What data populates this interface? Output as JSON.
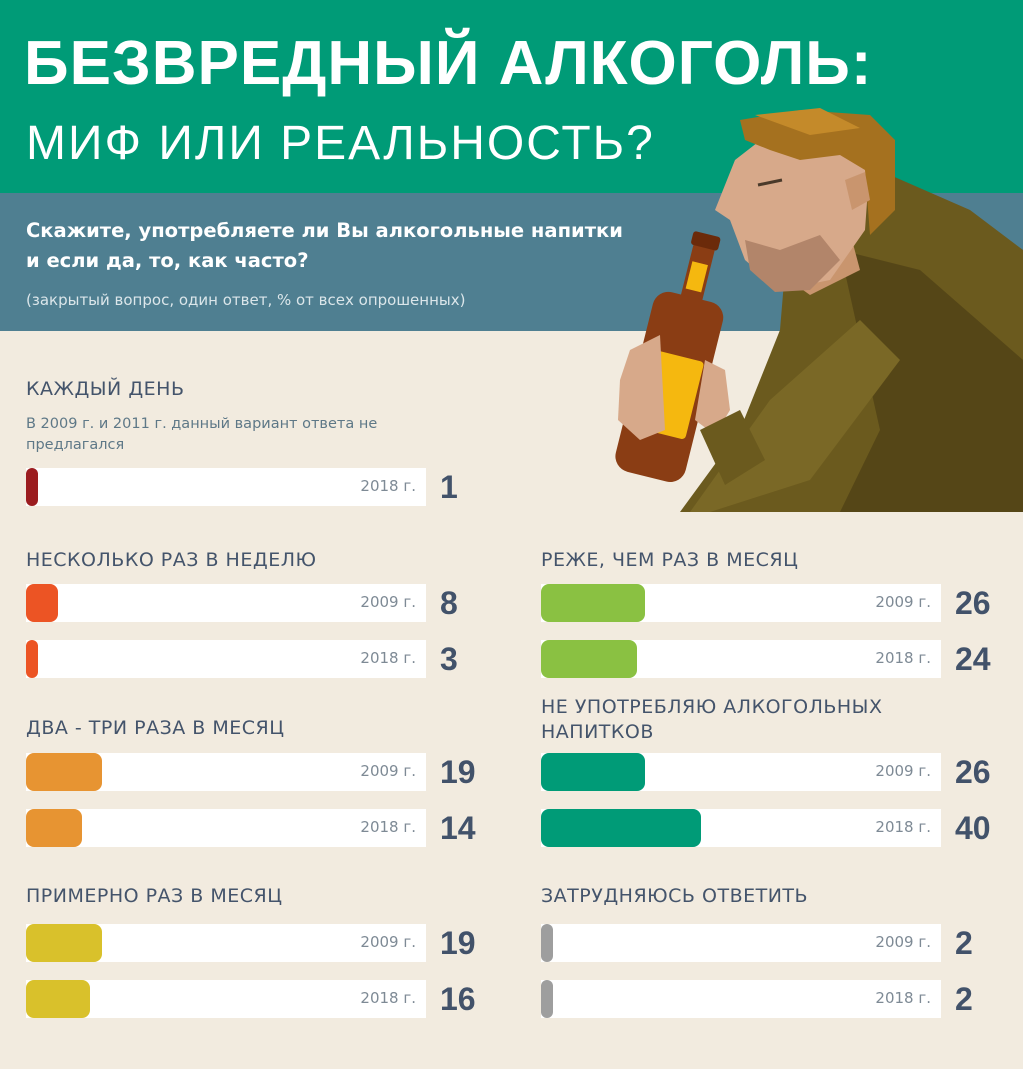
{
  "header": {
    "title_line1": "БЕЗВРЕДНЫЙ АЛКОГОЛЬ:",
    "title_line2": "МИФ ИЛИ РЕАЛЬНОСТЬ?"
  },
  "question": {
    "text": "Скажите, употребляете ли Вы алкогольные напитки и если да, то, как часто?",
    "note": "(закрытый вопрос, один ответ, % от всех опрошенных)"
  },
  "colors": {
    "header_bg": "#009b77",
    "question_bg": "#4f7f91",
    "page_bg": "#f2ebdf"
  },
  "chart_data": {
    "type": "bar",
    "unit": "% от всех опрошенных",
    "xlim": [
      0,
      100
    ],
    "groups": [
      {
        "label": "КАЖДЫЙ ДЕНЬ",
        "note": "В 2009 г. и 2011 г. данный вариант ответа не предлагался",
        "color": "#9b1c1f",
        "bars": [
          {
            "year": "2018 г.",
            "value": 1
          }
        ]
      },
      {
        "label": "НЕСКОЛЬКО РАЗ В НЕДЕЛЮ",
        "color": "#ec5424",
        "bars": [
          {
            "year": "2009 г.",
            "value": 8
          },
          {
            "year": "2018 г.",
            "value": 3
          }
        ]
      },
      {
        "label": "ДВА - ТРИ РАЗА В МЕСЯЦ",
        "color": "#e79432",
        "bars": [
          {
            "year": "2009 г.",
            "value": 19
          },
          {
            "year": "2018 г.",
            "value": 14
          }
        ]
      },
      {
        "label": "ПРИМЕРНО РАЗ В МЕСЯЦ",
        "color": "#d9c12b",
        "bars": [
          {
            "year": "2009 г.",
            "value": 19
          },
          {
            "year": "2018 г.",
            "value": 16
          }
        ]
      },
      {
        "label": "РЕЖЕ, ЧЕМ РАЗ В МЕСЯЦ",
        "color": "#8ac142",
        "bars": [
          {
            "year": "2009 г.",
            "value": 26
          },
          {
            "year": "2018 г.",
            "value": 24
          }
        ]
      },
      {
        "label": "НЕ УПОТРЕБЛЯЮ АЛКОГОЛЬНЫХ НАПИТКОВ",
        "color": "#009b77",
        "bars": [
          {
            "year": "2009 г.",
            "value": 26
          },
          {
            "year": "2018 г.",
            "value": 40
          }
        ]
      },
      {
        "label": "ЗАТРУДНЯЮСЬ ОТВЕТИТЬ",
        "color": "#9e9e9e",
        "bars": [
          {
            "year": "2009 г.",
            "value": 2
          },
          {
            "year": "2018 г.",
            "value": 2
          }
        ]
      }
    ]
  }
}
